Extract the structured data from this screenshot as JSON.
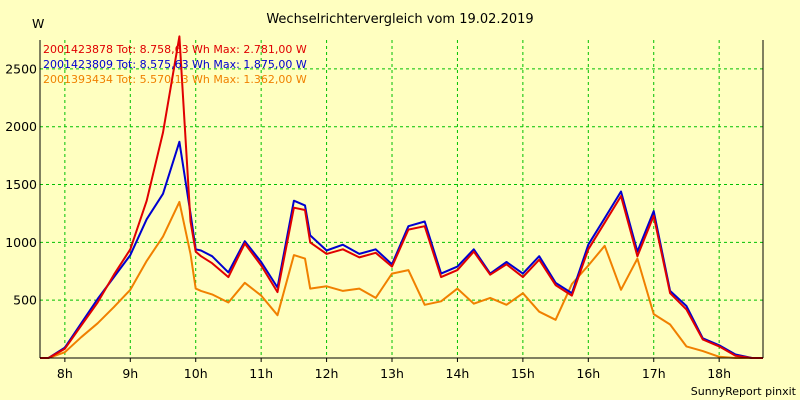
{
  "chart_data": {
    "type": "line",
    "title": "Wechselrichtervergleich vom 19.02.2019",
    "ylabel": "W",
    "footer": "SunnyReport pinxit",
    "ylim": [
      0,
      2750
    ],
    "xlim": [
      7.62,
      18.67
    ],
    "grid": true,
    "legend_position": "top-left",
    "background_color": "#FFFFC0",
    "grid_color": "#00C000",
    "x_ticks": [
      {
        "value": 8,
        "label": "8h"
      },
      {
        "value": 9,
        "label": "9h"
      },
      {
        "value": 10,
        "label": "10h"
      },
      {
        "value": 11,
        "label": "11h"
      },
      {
        "value": 12,
        "label": "12h"
      },
      {
        "value": 13,
        "label": "13h"
      },
      {
        "value": 14,
        "label": "14h"
      },
      {
        "value": 15,
        "label": "15h"
      },
      {
        "value": 16,
        "label": "16h"
      },
      {
        "value": 17,
        "label": "17h"
      },
      {
        "value": 18,
        "label": "18h"
      }
    ],
    "y_ticks": [
      {
        "value": 500,
        "label": "500"
      },
      {
        "value": 1000,
        "label": "1000"
      },
      {
        "value": 1500,
        "label": "1500"
      },
      {
        "value": 2000,
        "label": "2000"
      },
      {
        "value": 2500,
        "label": "2500"
      }
    ],
    "x": [
      7.62,
      7.75,
      8.0,
      8.25,
      8.5,
      8.75,
      9.0,
      9.25,
      9.5,
      9.75,
      9.92,
      10.0,
      10.08,
      10.25,
      10.5,
      10.75,
      11.0,
      11.25,
      11.5,
      11.67,
      11.75,
      12.0,
      12.25,
      12.5,
      12.75,
      13.0,
      13.25,
      13.5,
      13.75,
      14.0,
      14.25,
      14.5,
      14.75,
      15.0,
      15.25,
      15.5,
      15.75,
      16.0,
      16.25,
      16.5,
      16.75,
      17.0,
      17.25,
      17.5,
      17.75,
      18.0,
      18.25,
      18.5,
      18.67
    ],
    "series": [
      {
        "name": "2001423878 Tot: 8.758,63 Wh Max: 2.781,00 W",
        "color": "#E00000",
        "values": [
          0,
          0,
          80,
          280,
          480,
          720,
          940,
          1360,
          1950,
          2781,
          1180,
          920,
          880,
          820,
          700,
          990,
          800,
          570,
          1300,
          1280,
          1000,
          900,
          940,
          870,
          910,
          790,
          1110,
          1140,
          700,
          760,
          920,
          720,
          810,
          700,
          850,
          630,
          540,
          940,
          1170,
          1400,
          880,
          1230,
          560,
          420,
          160,
          100,
          20,
          0,
          0
        ]
      },
      {
        "name": "2001423809 Tot: 8.575,63 Wh Max: 1.875,00 W",
        "color": "#0000D0",
        "values": [
          0,
          0,
          90,
          300,
          510,
          700,
          890,
          1200,
          1420,
          1870,
          1250,
          940,
          930,
          880,
          740,
          1010,
          830,
          610,
          1360,
          1320,
          1060,
          930,
          980,
          900,
          940,
          810,
          1140,
          1180,
          730,
          790,
          940,
          730,
          830,
          730,
          880,
          650,
          560,
          980,
          1210,
          1440,
          920,
          1270,
          580,
          450,
          170,
          110,
          30,
          0,
          0
        ]
      },
      {
        "name": "2001393434 Tot: 5.570,13 Wh Max: 1.362,00 W",
        "color": "#F08000",
        "values": [
          0,
          0,
          50,
          180,
          300,
          440,
          590,
          840,
          1050,
          1350,
          900,
          600,
          580,
          550,
          480,
          650,
          540,
          370,
          890,
          860,
          600,
          620,
          580,
          600,
          520,
          730,
          760,
          460,
          490,
          600,
          470,
          520,
          460,
          560,
          400,
          330,
          640,
          800,
          970,
          590,
          860,
          380,
          290,
          100,
          60,
          10,
          0,
          0,
          0
        ]
      }
    ]
  }
}
